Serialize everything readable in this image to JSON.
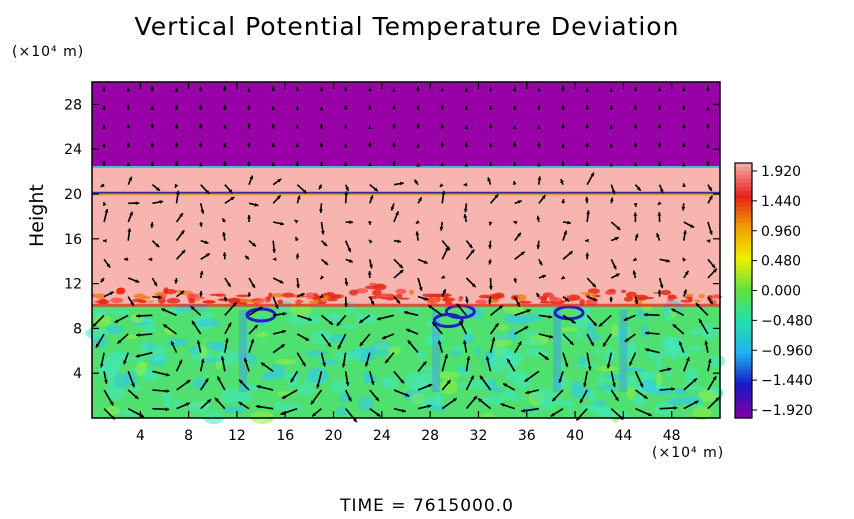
{
  "chart_data": {
    "type": "heatmap",
    "title": "Vertical Potential Temperature Deviation",
    "xunit": "(×10⁴ m)",
    "yunit": "(×10⁴ m)",
    "ylabel": "Height",
    "xlabel": "",
    "xlim": [
      0,
      52
    ],
    "ylim": [
      0,
      30
    ],
    "xticks": [
      4,
      8,
      12,
      16,
      20,
      24,
      28,
      32,
      36,
      40,
      44,
      48
    ],
    "yticks": [
      4,
      8,
      12,
      16,
      20,
      24,
      28
    ],
    "colorbar": {
      "labels": [
        "1.920",
        "1.440",
        "0.960",
        "0.480",
        "0.000",
        "−0.480",
        "−0.960",
        "−1.440",
        "−1.920"
      ],
      "values": [
        1.92,
        1.44,
        0.96,
        0.48,
        0.0,
        -0.48,
        -0.96,
        -1.44,
        -1.92
      ],
      "colors": [
        "#f4a8a0",
        "#e8201a",
        "#f0a000",
        "#f0f000",
        "#60e040",
        "#20e0b0",
        "#20b0f0",
        "#1818c8",
        "#8000a8"
      ]
    },
    "layers": [
      {
        "from": 22.4,
        "to": 30,
        "value": -1.92,
        "color": "#9900a8"
      },
      {
        "from": 10.0,
        "to": 22.4,
        "value": 1.92,
        "color": "#f8b4ae"
      },
      {
        "from": 0.0,
        "to": 10.0,
        "value": 0.2,
        "color": "#50e070"
      }
    ],
    "grid": false,
    "vector_field": true
  },
  "footer": {
    "time_text": "TIME  =  7615000.0"
  },
  "colors": {
    "background": "#ffffff",
    "frame": "#000000"
  }
}
